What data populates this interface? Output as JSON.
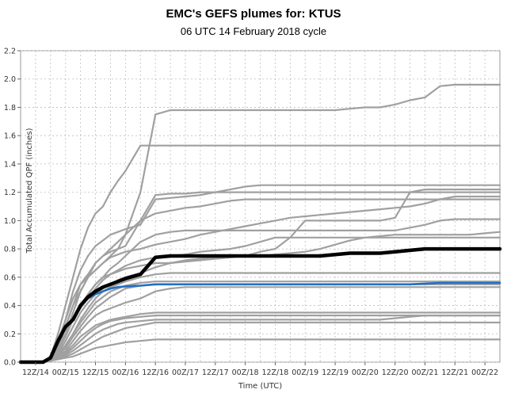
{
  "chart_data": {
    "type": "line",
    "title": "EMC's GEFS plumes for: KTUS",
    "subtitle": "06 UTC 14 February 2018 cycle",
    "xlabel": "Time (UTC)",
    "ylabel": "Total Accumulated QPF (inches)",
    "ylim": [
      0,
      2.2
    ],
    "yticks": [
      "0.0",
      "0.2",
      "0.4",
      "0.6",
      "0.8",
      "1.0",
      "1.2",
      "1.4",
      "1.6",
      "1.8",
      "2.0",
      "2.2"
    ],
    "x_tick_labels": [
      "12Z/14",
      "00Z/15",
      "12Z/15",
      "00Z/16",
      "12Z/16",
      "00Z/17",
      "12Z/17",
      "00Z/18",
      "12Z/18",
      "00Z/19",
      "12Z/19",
      "00Z/20",
      "12Z/20",
      "00Z/21",
      "12Z/21",
      "00Z/22"
    ],
    "grid": true,
    "colors": {
      "member": "#a0a0a0",
      "mean": "#000000",
      "control": "#1f6fc4"
    },
    "x": [
      0,
      1,
      1.5,
      2,
      2.5,
      3,
      3.5,
      4,
      4.5,
      5,
      5.5,
      6,
      6.5,
      7,
      8,
      9,
      10,
      11,
      12,
      13,
      14,
      15,
      16,
      17,
      18,
      19,
      20,
      21,
      22,
      23,
      24,
      25,
      26,
      27,
      28,
      29,
      30,
      31,
      32
    ],
    "series": [
      {
        "role": "mean",
        "values": [
          0,
          0,
          0,
          0.03,
          0.15,
          0.25,
          0.3,
          0.4,
          0.46,
          0.5,
          0.53,
          0.55,
          0.57,
          0.59,
          0.62,
          0.74,
          0.75,
          0.75,
          0.75,
          0.75,
          0.75,
          0.75,
          0.75,
          0.75,
          0.75,
          0.75,
          0.75,
          0.76,
          0.77,
          0.77,
          0.77,
          0.78,
          0.79,
          0.8,
          0.8,
          0.8,
          0.8,
          0.8,
          0.8
        ]
      },
      {
        "role": "control",
        "values": [
          0,
          0,
          0,
          0.03,
          0.15,
          0.25,
          0.3,
          0.4,
          0.45,
          0.48,
          0.5,
          0.52,
          0.53,
          0.535,
          0.54,
          0.55,
          0.55,
          0.55,
          0.55,
          0.55,
          0.55,
          0.55,
          0.55,
          0.55,
          0.55,
          0.55,
          0.55,
          0.55,
          0.55,
          0.55,
          0.55,
          0.55,
          0.55,
          0.555,
          0.56,
          0.56,
          0.56,
          0.56,
          0.56
        ]
      },
      {
        "role": "member",
        "values": [
          0,
          0,
          0,
          0.04,
          0.2,
          0.4,
          0.6,
          0.8,
          0.95,
          1.05,
          1.1,
          1.2,
          1.28,
          1.35,
          1.53,
          1.53,
          1.53,
          1.53,
          1.53,
          1.53,
          1.53,
          1.53,
          1.53,
          1.53,
          1.53,
          1.53,
          1.53,
          1.53,
          1.53,
          1.53,
          1.53,
          1.53,
          1.53,
          1.53,
          1.53,
          1.53,
          1.53,
          1.53,
          1.53
        ]
      },
      {
        "role": "member",
        "values": [
          0,
          0,
          0,
          0.03,
          0.15,
          0.3,
          0.45,
          0.55,
          0.6,
          0.65,
          0.7,
          0.75,
          0.8,
          0.9,
          1.2,
          1.75,
          1.78,
          1.78,
          1.78,
          1.78,
          1.78,
          1.78,
          1.78,
          1.78,
          1.78,
          1.78,
          1.78,
          1.78,
          1.79,
          1.8,
          1.8,
          1.82,
          1.85,
          1.87,
          1.95,
          1.96,
          1.96,
          1.96,
          1.96
        ]
      },
      {
        "role": "member",
        "values": [
          0,
          0,
          0,
          0.02,
          0.1,
          0.25,
          0.4,
          0.55,
          0.62,
          0.7,
          0.75,
          0.78,
          0.8,
          0.82,
          1.0,
          1.18,
          1.19,
          1.19,
          1.2,
          1.2,
          1.2,
          1.2,
          1.2,
          1.2,
          1.2,
          1.2,
          1.2,
          1.2,
          1.2,
          1.2,
          1.2,
          1.2,
          1.2,
          1.2,
          1.2,
          1.2,
          1.2,
          1.2,
          1.2
        ]
      },
      {
        "role": "member",
        "values": [
          0,
          0,
          0,
          0.02,
          0.12,
          0.3,
          0.5,
          0.65,
          0.75,
          0.82,
          0.86,
          0.9,
          0.92,
          0.94,
          0.97,
          1.15,
          1.16,
          1.17,
          1.18,
          1.2,
          1.22,
          1.24,
          1.25,
          1.25,
          1.25,
          1.25,
          1.25,
          1.25,
          1.25,
          1.25,
          1.25,
          1.25,
          1.25,
          1.25,
          1.25,
          1.25,
          1.25,
          1.25,
          1.25
        ]
      },
      {
        "role": "member",
        "values": [
          0,
          0,
          0,
          0.02,
          0.1,
          0.2,
          0.35,
          0.5,
          0.6,
          0.7,
          0.75,
          0.8,
          0.85,
          0.9,
          1.0,
          1.05,
          1.07,
          1.09,
          1.1,
          1.12,
          1.14,
          1.15,
          1.15,
          1.15,
          1.15,
          1.15,
          1.15,
          1.15,
          1.15,
          1.15,
          1.15,
          1.15,
          1.15,
          1.15,
          1.15,
          1.15,
          1.15,
          1.15,
          1.15
        ]
      },
      {
        "role": "member",
        "values": [
          0,
          0,
          0,
          0.02,
          0.1,
          0.25,
          0.4,
          0.5,
          0.6,
          0.65,
          0.7,
          0.74,
          0.76,
          0.78,
          0.8,
          0.83,
          0.85,
          0.87,
          0.9,
          0.92,
          0.94,
          0.96,
          0.98,
          1.0,
          1.02,
          1.03,
          1.04,
          1.05,
          1.06,
          1.07,
          1.08,
          1.09,
          1.1,
          1.12,
          1.15,
          1.17,
          1.17,
          1.17,
          1.17
        ]
      },
      {
        "role": "member",
        "values": [
          0,
          0,
          0,
          0.02,
          0.08,
          0.2,
          0.3,
          0.4,
          0.48,
          0.55,
          0.6,
          0.62,
          0.64,
          0.66,
          0.68,
          0.7,
          0.7,
          0.71,
          0.72,
          0.73,
          0.74,
          0.75,
          0.78,
          0.8,
          0.88,
          1.0,
          1.0,
          1.0,
          1.0,
          1.0,
          1.0,
          1.02,
          1.2,
          1.22,
          1.22,
          1.22,
          1.22,
          1.22,
          1.22
        ]
      },
      {
        "role": "member",
        "values": [
          0,
          0,
          0,
          0.02,
          0.1,
          0.2,
          0.3,
          0.4,
          0.48,
          0.55,
          0.6,
          0.66,
          0.7,
          0.75,
          0.85,
          0.9,
          0.92,
          0.93,
          0.93,
          0.93,
          0.93,
          0.93,
          0.93,
          0.93,
          0.93,
          0.93,
          0.93,
          0.93,
          0.93,
          0.93,
          0.93,
          0.93,
          0.95,
          0.97,
          1.0,
          1.01,
          1.01,
          1.01,
          1.01
        ]
      },
      {
        "role": "member",
        "values": [
          0,
          0,
          0,
          0.02,
          0.08,
          0.18,
          0.3,
          0.38,
          0.45,
          0.52,
          0.58,
          0.62,
          0.65,
          0.68,
          0.72,
          0.74,
          0.75,
          0.76,
          0.78,
          0.79,
          0.8,
          0.82,
          0.85,
          0.88,
          0.88,
          0.88,
          0.88,
          0.88,
          0.88,
          0.88,
          0.88,
          0.88,
          0.88,
          0.88,
          0.88,
          0.88,
          0.88,
          0.88,
          0.88
        ]
      },
      {
        "role": "member",
        "values": [
          0,
          0,
          0,
          0.02,
          0.06,
          0.15,
          0.25,
          0.35,
          0.42,
          0.48,
          0.52,
          0.55,
          0.58,
          0.6,
          0.63,
          0.67,
          0.7,
          0.72,
          0.73,
          0.74,
          0.75,
          0.75,
          0.75,
          0.76,
          0.77,
          0.78,
          0.8,
          0.83,
          0.86,
          0.88,
          0.89,
          0.9,
          0.9,
          0.9,
          0.9,
          0.9,
          0.9,
          0.91,
          0.92
        ]
      },
      {
        "role": "member",
        "values": [
          0,
          0,
          0,
          0.02,
          0.05,
          0.1,
          0.2,
          0.3,
          0.38,
          0.45,
          0.5,
          0.53,
          0.55,
          0.57,
          0.6,
          0.62,
          0.63,
          0.63,
          0.63,
          0.63,
          0.63,
          0.63,
          0.63,
          0.63,
          0.63,
          0.63,
          0.63,
          0.63,
          0.63,
          0.63,
          0.63,
          0.63,
          0.63,
          0.63,
          0.63,
          0.63,
          0.63,
          0.63,
          0.63
        ]
      },
      {
        "role": "member",
        "values": [
          0,
          0,
          0,
          0.02,
          0.05,
          0.12,
          0.2,
          0.28,
          0.35,
          0.42,
          0.46,
          0.5,
          0.52,
          0.54,
          0.56,
          0.57,
          0.57,
          0.57,
          0.57,
          0.57,
          0.57,
          0.57,
          0.57,
          0.57,
          0.57,
          0.57,
          0.57,
          0.57,
          0.57,
          0.57,
          0.57,
          0.57,
          0.57,
          0.57,
          0.57,
          0.57,
          0.57,
          0.57,
          0.57
        ]
      },
      {
        "role": "member",
        "values": [
          0,
          0,
          0,
          0.02,
          0.05,
          0.1,
          0.18,
          0.25,
          0.32,
          0.38,
          0.42,
          0.46,
          0.49,
          0.52,
          0.54,
          0.55,
          0.55,
          0.55,
          0.55,
          0.55,
          0.55,
          0.55,
          0.55,
          0.55,
          0.55,
          0.55,
          0.55,
          0.55,
          0.55,
          0.55,
          0.55,
          0.55,
          0.55,
          0.55,
          0.55,
          0.55,
          0.55,
          0.55,
          0.55
        ]
      },
      {
        "role": "member",
        "values": [
          0,
          0,
          0,
          0.02,
          0.04,
          0.08,
          0.15,
          0.22,
          0.28,
          0.33,
          0.36,
          0.38,
          0.4,
          0.42,
          0.45,
          0.5,
          0.52,
          0.53,
          0.53,
          0.53,
          0.53,
          0.53,
          0.53,
          0.53,
          0.53,
          0.53,
          0.53,
          0.53,
          0.53,
          0.53,
          0.53,
          0.53,
          0.53,
          0.53,
          0.53,
          0.53,
          0.53,
          0.53,
          0.53
        ]
      },
      {
        "role": "member",
        "values": [
          0,
          0,
          0,
          0.01,
          0.03,
          0.07,
          0.12,
          0.18,
          0.22,
          0.26,
          0.28,
          0.3,
          0.31,
          0.32,
          0.34,
          0.35,
          0.35,
          0.35,
          0.35,
          0.35,
          0.35,
          0.35,
          0.35,
          0.35,
          0.35,
          0.35,
          0.35,
          0.35,
          0.35,
          0.35,
          0.35,
          0.35,
          0.35,
          0.35,
          0.35,
          0.35,
          0.35,
          0.35,
          0.35
        ]
      },
      {
        "role": "member",
        "values": [
          0,
          0,
          0,
          0.01,
          0.03,
          0.06,
          0.1,
          0.15,
          0.2,
          0.24,
          0.27,
          0.29,
          0.3,
          0.31,
          0.32,
          0.33,
          0.33,
          0.33,
          0.33,
          0.33,
          0.33,
          0.33,
          0.33,
          0.33,
          0.33,
          0.33,
          0.33,
          0.33,
          0.33,
          0.33,
          0.33,
          0.33,
          0.33,
          0.33,
          0.33,
          0.33,
          0.33,
          0.33,
          0.33
        ]
      },
      {
        "role": "member",
        "values": [
          0,
          0,
          0,
          0.01,
          0.02,
          0.05,
          0.08,
          0.12,
          0.16,
          0.2,
          0.23,
          0.25,
          0.27,
          0.28,
          0.29,
          0.3,
          0.3,
          0.3,
          0.3,
          0.3,
          0.3,
          0.3,
          0.3,
          0.3,
          0.3,
          0.3,
          0.3,
          0.3,
          0.3,
          0.3,
          0.3,
          0.31,
          0.32,
          0.33,
          0.33,
          0.33,
          0.33,
          0.33,
          0.33
        ]
      },
      {
        "role": "member",
        "values": [
          0,
          0,
          0,
          0.01,
          0.02,
          0.04,
          0.06,
          0.09,
          0.12,
          0.15,
          0.18,
          0.2,
          0.22,
          0.24,
          0.26,
          0.28,
          0.28,
          0.28,
          0.28,
          0.28,
          0.28,
          0.28,
          0.28,
          0.28,
          0.28,
          0.28,
          0.28,
          0.28,
          0.28,
          0.28,
          0.28,
          0.28,
          0.28,
          0.28,
          0.28,
          0.28,
          0.28,
          0.28,
          0.28
        ]
      },
      {
        "role": "member",
        "values": [
          0,
          0,
          0,
          0.01,
          0.02,
          0.03,
          0.04,
          0.06,
          0.08,
          0.1,
          0.11,
          0.12,
          0.13,
          0.14,
          0.15,
          0.16,
          0.16,
          0.16,
          0.16,
          0.16,
          0.16,
          0.16,
          0.16,
          0.16,
          0.16,
          0.16,
          0.16,
          0.16,
          0.16,
          0.16,
          0.16,
          0.16,
          0.16,
          0.16,
          0.16,
          0.16,
          0.16,
          0.16,
          0.16
        ]
      }
    ]
  }
}
